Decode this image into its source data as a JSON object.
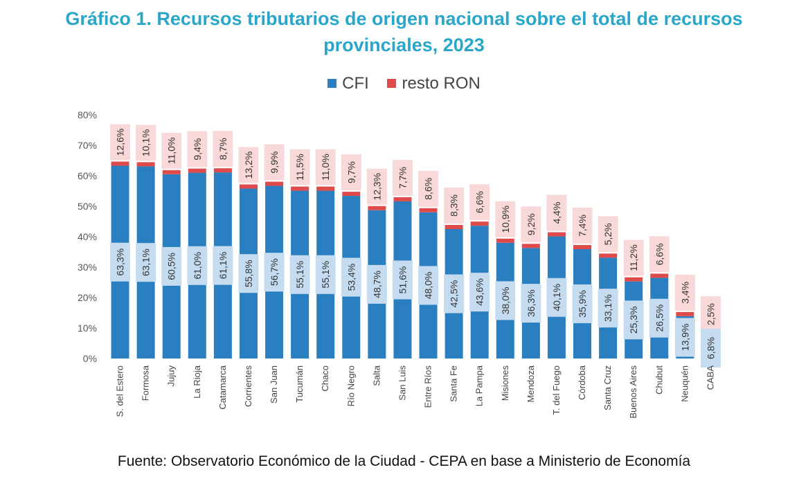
{
  "title_line1": "Gráfico 1. Recursos tributarios de origen nacional sobre el total de recursos",
  "title_line2": "provinciales, 2023",
  "legend": [
    {
      "label": "CFI",
      "color": "#2a7fc0"
    },
    {
      "label": "resto RON",
      "color": "#df4a4a"
    }
  ],
  "source": "Fuente: Observatorio Económico de la Ciudad - CEPA en base a Ministerio de Economía",
  "chart_data": {
    "type": "bar",
    "stacked": true,
    "categories": [
      "S. del Estero",
      "Formosa",
      "Jujuy",
      "La Rioja",
      "Catamarca",
      "Corrientes",
      "San Juan",
      "Tucumán",
      "Chaco",
      "Río Negro",
      "Salta",
      "San Luis",
      "Entre Ríos",
      "Santa Fe",
      "La Pampa",
      "Misiones",
      "Mendoza",
      "T. del Fuego",
      "Córdoba",
      "Santa Cruz",
      "Buenos Aires",
      "Chubut",
      "Neuquén",
      "CABA"
    ],
    "series": [
      {
        "name": "CFI",
        "color": "#2a7fc0",
        "label_bg": "#c5dcf0",
        "values": [
          63.3,
          63.1,
          60.5,
          61.0,
          61.1,
          55.8,
          56.7,
          55.1,
          55.1,
          53.4,
          48.7,
          51.6,
          48.0,
          42.5,
          43.6,
          38.0,
          36.3,
          40.1,
          35.9,
          33.1,
          25.3,
          26.5,
          13.9,
          6.8
        ],
        "labels": [
          "63,3%",
          "63,1%",
          "60,5%",
          "61,0%",
          "61,1%",
          "55,8%",
          "56,7%",
          "55,1%",
          "55,1%",
          "53,4%",
          "48,7%",
          "51,6%",
          "48,0%",
          "42,5%",
          "43,6%",
          "38,0%",
          "36,3%",
          "40,1%",
          "35,9%",
          "33,1%",
          "25,3%",
          "26,5%",
          "13,9%",
          "6,8%"
        ]
      },
      {
        "name": "resto RON",
        "color": "#df4a4a",
        "label_bg": "#f8d8d8",
        "values": [
          12.6,
          10.1,
          11.0,
          9.4,
          8.7,
          13.2,
          9.9,
          11.5,
          11.0,
          9.7,
          12.3,
          7.7,
          8.6,
          8.3,
          6.6,
          10.9,
          9.2,
          4.4,
          7.4,
          5.2,
          11.2,
          6.6,
          3.4,
          2.5
        ],
        "labels": [
          "12,6%",
          "10,1%",
          "11,0%",
          "9,4%",
          "8,7%",
          "13,2%",
          "9,9%",
          "11,5%",
          "11,0%",
          "9,7%",
          "12,3%",
          "7,7%",
          "8,6%",
          "8,3%",
          "6,6%",
          "10,9%",
          "9,2%",
          "4,4%",
          "7,4%",
          "5,2%",
          "11,2%",
          "6,6%",
          "3,4%",
          "2,5%"
        ]
      }
    ],
    "ylim": [
      0,
      80
    ],
    "yticks": [
      "0%",
      "10%",
      "20%",
      "30%",
      "40%",
      "50%",
      "60%",
      "70%",
      "80%"
    ],
    "grid": false,
    "legend_position": "top"
  }
}
